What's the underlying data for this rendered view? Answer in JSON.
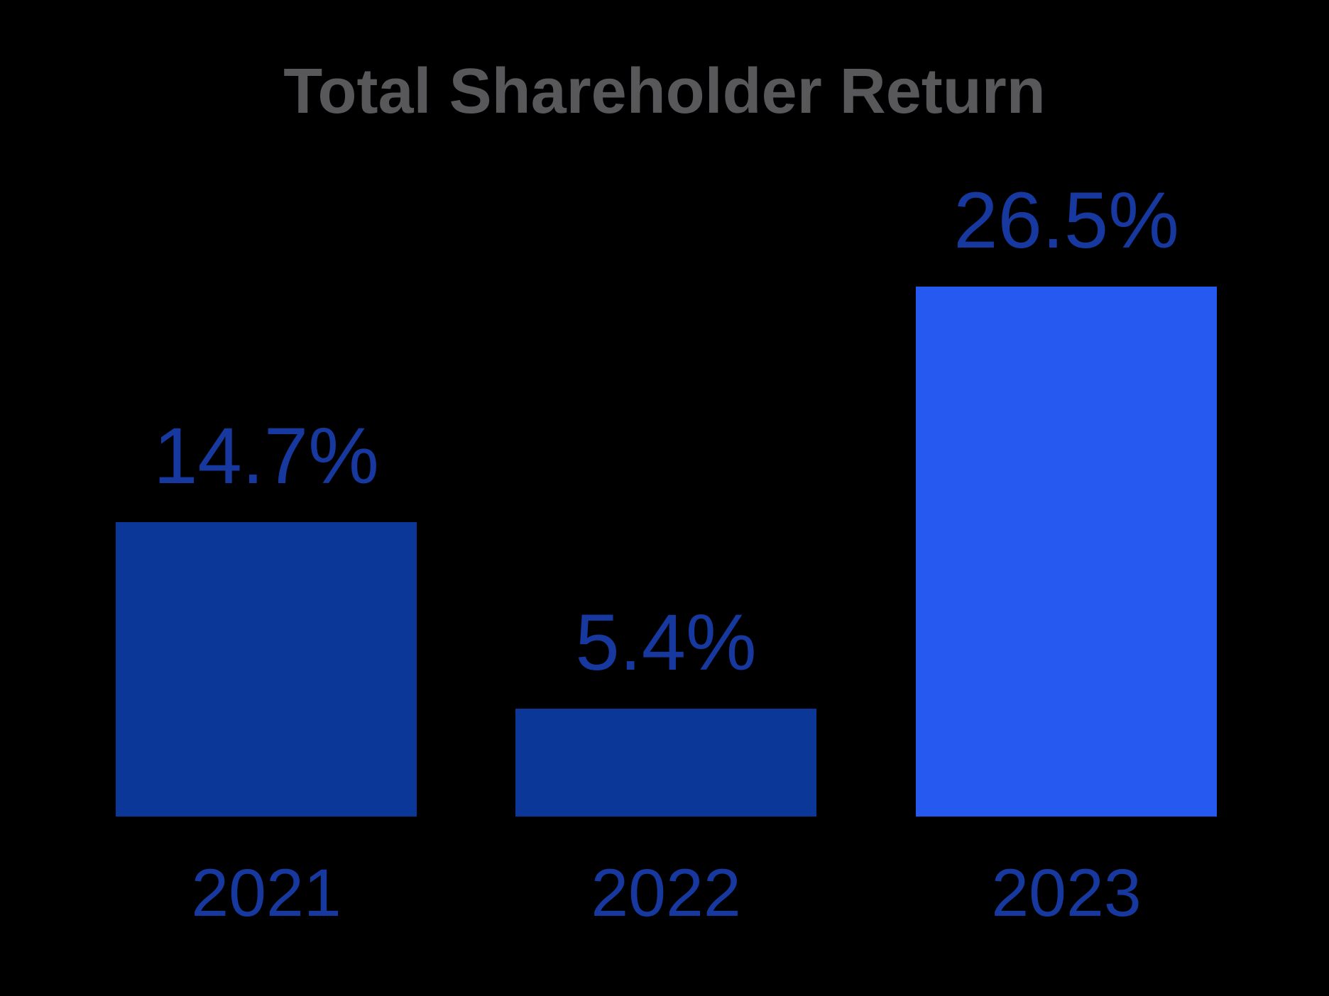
{
  "chart_data": {
    "type": "bar",
    "title": "Total Shareholder Return",
    "categories": [
      "2021",
      "2022",
      "2023"
    ],
    "values": [
      14.7,
      5.4,
      26.5
    ],
    "value_labels": [
      "14.7%",
      "5.4%",
      "26.5%"
    ],
    "xlabel": "",
    "ylabel": "",
    "ylim": [
      0,
      30
    ],
    "grid": false,
    "legend": "none",
    "axes_visible": false,
    "bar_colors": [
      "#0B3799",
      "#0B3799",
      "#2559F0"
    ],
    "label_color": "#17399F",
    "title_color": "#58585A",
    "background_color": "#000000"
  }
}
